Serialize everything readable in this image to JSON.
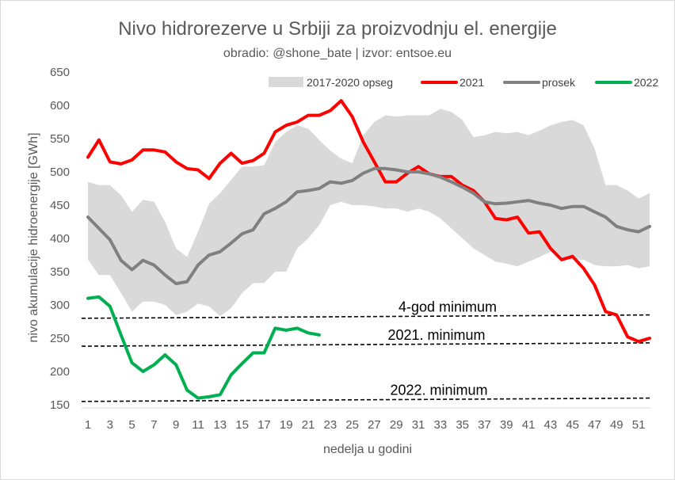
{
  "chart_data": {
    "type": "line",
    "title": "Nivo hidrorezerve  u Srbiji za proizvodnju el. energije",
    "subtitle": "obradio: @shone_bate  | izvor: entsoe.eu",
    "xlabel": "nedelja u godini",
    "ylabel": "nivo akumulacije hidroenergije [GWh]",
    "xlim": [
      1,
      52
    ],
    "ylim": [
      150,
      650
    ],
    "x_ticks": [
      1,
      3,
      5,
      7,
      9,
      11,
      13,
      15,
      17,
      19,
      21,
      23,
      25,
      27,
      29,
      31,
      33,
      35,
      37,
      39,
      41,
      43,
      45,
      47,
      49,
      51
    ],
    "y_ticks": [
      150,
      200,
      250,
      300,
      350,
      400,
      450,
      500,
      550,
      600,
      650
    ],
    "grid": false,
    "legend_position": "top-right",
    "band": {
      "name": "2017-2020 opseg",
      "color": "#d9d9d9",
      "x": [
        1,
        2,
        3,
        4,
        5,
        6,
        7,
        8,
        9,
        10,
        11,
        12,
        13,
        14,
        15,
        16,
        17,
        18,
        19,
        20,
        21,
        22,
        23,
        24,
        25,
        26,
        27,
        28,
        29,
        30,
        31,
        32,
        33,
        34,
        35,
        36,
        37,
        38,
        39,
        40,
        41,
        42,
        43,
        44,
        45,
        46,
        47,
        48,
        49,
        50,
        51,
        52
      ],
      "lower": [
        368,
        345,
        345,
        318,
        290,
        305,
        305,
        300,
        285,
        290,
        302,
        298,
        283,
        295,
        318,
        333,
        333,
        350,
        350,
        385,
        400,
        420,
        450,
        455,
        450,
        450,
        448,
        445,
        445,
        440,
        445,
        440,
        430,
        415,
        400,
        385,
        375,
        365,
        362,
        358,
        365,
        372,
        380,
        370,
        368,
        368,
        360,
        358,
        358,
        360,
        355,
        358
      ],
      "upper": [
        485,
        480,
        480,
        465,
        440,
        458,
        455,
        425,
        385,
        372,
        410,
        452,
        468,
        488,
        508,
        508,
        510,
        545,
        560,
        570,
        565,
        548,
        532,
        520,
        513,
        555,
        575,
        585,
        583,
        585,
        585,
        585,
        595,
        590,
        578,
        552,
        555,
        560,
        558,
        560,
        555,
        562,
        570,
        575,
        578,
        570,
        535,
        480,
        480,
        472,
        460,
        468
      ]
    },
    "series": [
      {
        "name": "2021",
        "color": "#ff0000",
        "x": [
          1,
          2,
          3,
          4,
          5,
          6,
          7,
          8,
          9,
          10,
          11,
          12,
          13,
          14,
          15,
          16,
          17,
          18,
          19,
          20,
          21,
          22,
          23,
          24,
          25,
          26,
          27,
          28,
          29,
          30,
          31,
          32,
          33,
          34,
          35,
          36,
          37,
          38,
          39,
          40,
          41,
          42,
          43,
          44,
          45,
          46,
          47,
          48,
          49,
          50,
          51,
          52
        ],
        "values": [
          522,
          548,
          515,
          512,
          518,
          533,
          533,
          530,
          515,
          505,
          503,
          490,
          513,
          528,
          513,
          517,
          528,
          560,
          570,
          575,
          585,
          585,
          592,
          607,
          583,
          545,
          515,
          485,
          485,
          498,
          508,
          497,
          493,
          493,
          480,
          472,
          455,
          430,
          428,
          432,
          408,
          410,
          385,
          368,
          373,
          355,
          330,
          290,
          285,
          252,
          245,
          250
        ]
      },
      {
        "name": "prosek",
        "color": "#808080",
        "x": [
          1,
          2,
          3,
          4,
          5,
          6,
          7,
          8,
          9,
          10,
          11,
          12,
          13,
          14,
          15,
          16,
          17,
          18,
          19,
          20,
          21,
          22,
          23,
          24,
          25,
          26,
          27,
          28,
          29,
          30,
          31,
          32,
          33,
          34,
          35,
          36,
          37,
          38,
          39,
          40,
          41,
          42,
          43,
          44,
          45,
          46,
          47,
          48,
          49,
          50,
          51,
          52
        ],
        "values": [
          432,
          415,
          398,
          367,
          353,
          367,
          360,
          345,
          332,
          335,
          360,
          375,
          380,
          393,
          407,
          413,
          437,
          445,
          455,
          470,
          472,
          475,
          485,
          483,
          487,
          498,
          505,
          505,
          503,
          500,
          500,
          497,
          492,
          485,
          477,
          468,
          455,
          452,
          453,
          455,
          457,
          453,
          450,
          445,
          448,
          448,
          440,
          432,
          418,
          413,
          410,
          418
        ]
      },
      {
        "name": "2022",
        "color": "#00b050",
        "x": [
          1,
          2,
          3,
          4,
          5,
          6,
          7,
          8,
          9,
          10,
          11,
          12,
          13,
          14,
          15,
          16,
          17,
          18,
          19,
          20,
          21,
          22
        ],
        "values": [
          310,
          312,
          298,
          255,
          213,
          200,
          210,
          225,
          210,
          172,
          160,
          162,
          165,
          195,
          212,
          228,
          228,
          265,
          262,
          265,
          258,
          255
        ]
      }
    ],
    "reference_lines": [
      {
        "label": "4-god minimum",
        "color": "#000000",
        "x": [
          1,
          52
        ],
        "y": [
          280,
          285
        ]
      },
      {
        "label": "2021. minimum",
        "color": "#000000",
        "x": [
          1,
          52
        ],
        "y": [
          238,
          243
        ]
      },
      {
        "label": "2022. minimum",
        "color": "#000000",
        "x": [
          1,
          52
        ],
        "y": [
          155,
          160
        ]
      }
    ]
  }
}
